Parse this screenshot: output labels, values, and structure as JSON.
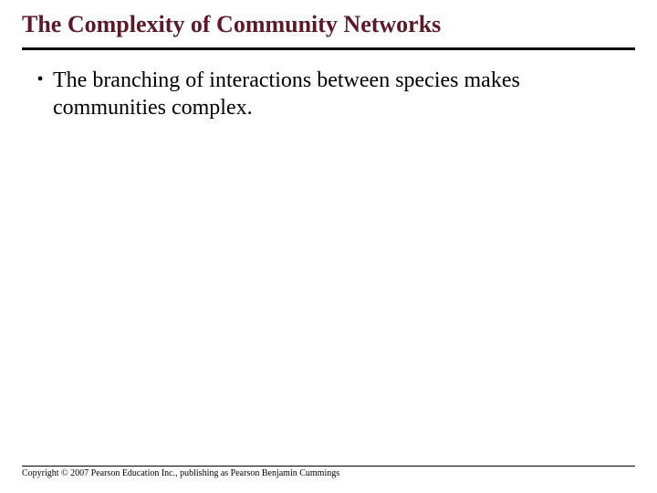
{
  "title": "The Complexity of Community Networks",
  "title_color": "#5a1a2a",
  "bullets": [
    "The branching of interactions between species makes communities complex."
  ],
  "copyright": "Copyright © 2007 Pearson Education Inc., publishing as Pearson Benjamin Cummings"
}
